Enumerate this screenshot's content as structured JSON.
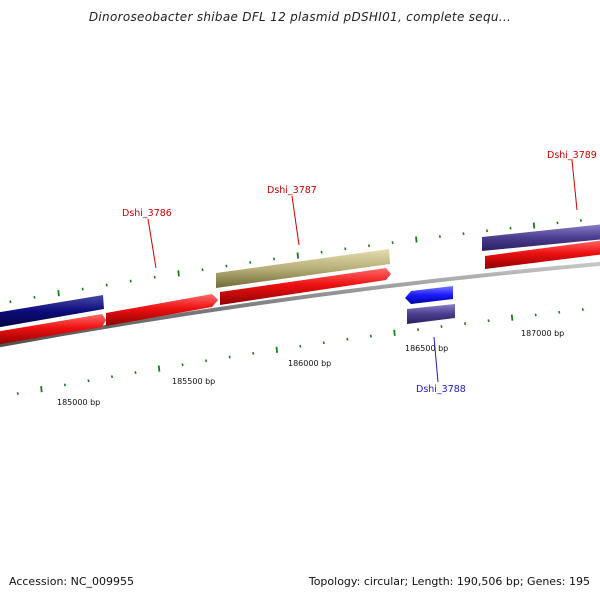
{
  "title": "Dinoroseobacter shibae DFL 12 plasmid pDSHI01, complete sequ...",
  "footer": {
    "accession": "Accession: NC_009955",
    "summary": "Topology: circular; Length: 190,506 bp; Genes: 195"
  },
  "scale": {
    "tick_labels": [
      "185000 bp",
      "185500 bp",
      "186000 bp",
      "186500 bp",
      "187000 bp"
    ]
  },
  "genes": [
    {
      "id": "g-left-dark",
      "label": "",
      "color": "#0b0b7a"
    },
    {
      "id": "g-dshi3786",
      "label": "Dshi_3786",
      "color": "#ee1111",
      "label_color": "#cc0000"
    },
    {
      "id": "g-dshi3787",
      "label": "Dshi_3787",
      "color": "#b8b078",
      "label_color": "#cc0000"
    },
    {
      "id": "g-dshi3788",
      "label": "Dshi_3788",
      "color": "#1a1aff",
      "label_color": "#1a1acc"
    },
    {
      "id": "g-dshi3789",
      "label": "Dshi_3789",
      "color": "#4b3d8f",
      "label_color": "#cc0000"
    }
  ],
  "colors": {
    "backbone": "#808080",
    "cds_forward": "#ee1111",
    "tick": "#1c7a1c"
  }
}
